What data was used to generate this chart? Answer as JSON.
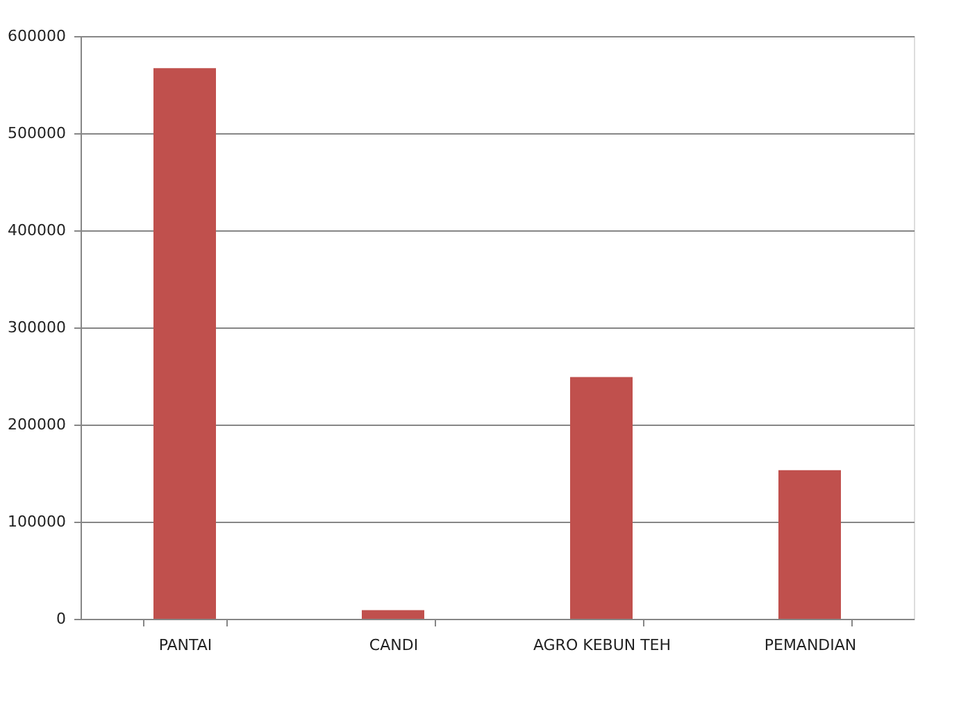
{
  "chart_data": {
    "type": "bar",
    "categories": [
      "PANTAI",
      "CANDI",
      "AGRO KEBUN TEH",
      "PEMANDIAN"
    ],
    "values": [
      567000,
      9000,
      249000,
      153000
    ],
    "color": "#c0504d",
    "ylim": [
      0,
      600000
    ],
    "yticks": [
      0,
      100000,
      200000,
      300000,
      400000,
      500000,
      600000
    ],
    "grid": "y"
  }
}
